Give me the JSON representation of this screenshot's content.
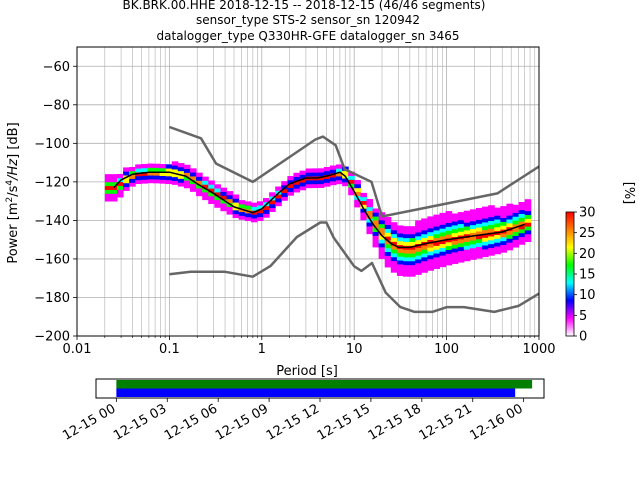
{
  "chart_data": [
    {
      "type": "heatmap",
      "title_lines": [
        "BK.BRK.00.HHE   2018-12-15 -- 2018-12-15  (46/46 segments)",
        "sensor_type STS-2 sensor_sn 120942",
        "datalogger_type Q330HR-GFE datalogger_sn 3465"
      ],
      "xlabel": "Period [s]",
      "ylabel": "Power [m²/s⁴/Hz] [dB]",
      "x_scale": "log",
      "xlim": [
        0.01,
        1000
      ],
      "ylim": [
        -200,
        -50
      ],
      "xticks": [
        0.01,
        0.1,
        1,
        10,
        100,
        1000
      ],
      "xtick_labels": [
        "0.01",
        "0.1",
        "1",
        "10",
        "100",
        "1000"
      ],
      "yticks": [
        -200,
        -180,
        -160,
        -140,
        -120,
        -100,
        -80,
        -60
      ],
      "ytick_labels": [
        "−200",
        "−180",
        "−160",
        "−140",
        "−120",
        "−100",
        "−80",
        "−60"
      ],
      "grid": true,
      "colorbar": {
        "label": "[%]",
        "range": [
          0,
          30
        ],
        "ticks": [
          0,
          5,
          10,
          15,
          20,
          25,
          30
        ],
        "colormap": [
          "#ffffff",
          "#ff00ff",
          "#0000ff",
          "#00ffff",
          "#00ff00",
          "#ffff00",
          "#ff8000",
          "#ff0000"
        ]
      },
      "noise_models": {
        "color": "#666666",
        "high_noise_model": {
          "period": [
            0.1,
            0.22,
            0.32,
            0.8,
            3.8,
            4.6,
            6.3,
            7.9,
            15.4,
            20,
            354.8,
            1000
          ],
          "db": [
            -91.5,
            -97.4,
            -110.5,
            -120.0,
            -98.0,
            -96.5,
            -101.0,
            -113.5,
            -120.0,
            -138.0,
            -126.0,
            -112.0
          ]
        },
        "low_noise_model": {
          "period": [
            0.1,
            0.17,
            0.4,
            0.8,
            1.24,
            2.4,
            4.3,
            5.0,
            6.0,
            10.0,
            12.0,
            15.6,
            21.9,
            31.6,
            45.0,
            70.0,
            101.0,
            154.0,
            328.0,
            600.0,
            1000.0
          ],
          "db": [
            -168.0,
            -166.7,
            -166.7,
            -169.2,
            -163.7,
            -148.6,
            -141.1,
            -141.1,
            -149.0,
            -163.8,
            -166.2,
            -162.1,
            -177.5,
            -185.0,
            -187.5,
            -187.5,
            -185.0,
            -185.0,
            -187.5,
            -184.4,
            -178.0
          ]
        }
      },
      "mean_psd": {
        "color": "#000000",
        "period": [
          0.025,
          0.03,
          0.04,
          0.06,
          0.1,
          0.15,
          0.2,
          0.3,
          0.5,
          0.8,
          1.0,
          1.5,
          2.0,
          3.0,
          4.0,
          5.0,
          6.0,
          7.0,
          8.0,
          10.0,
          13.0,
          16.0,
          20.0,
          25.0,
          30.0,
          40.0,
          60.0,
          100.0,
          200.0,
          400.0,
          700.0
        ],
        "db": [
          -123,
          -119,
          -116,
          -115,
          -115,
          -117,
          -121,
          -126,
          -133,
          -136,
          -134,
          -126,
          -121,
          -118,
          -118,
          -117,
          -116,
          -115,
          -117,
          -125,
          -135,
          -142,
          -148,
          -152,
          -154,
          -154,
          -152,
          -150,
          -148,
          -146,
          -142
        ]
      },
      "psd_spread_db": {
        "period": [
          0.025,
          0.04,
          0.1,
          0.3,
          0.8,
          2.0,
          6.0,
          12.0,
          20.0,
          40.0,
          100.0,
          300.0,
          700.0
        ],
        "low": [
          -6,
          -4,
          -5,
          -6,
          -4,
          -4,
          -4,
          -8,
          -14,
          -14,
          -12,
          -10,
          -8
        ],
        "high": [
          6,
          5,
          5,
          5,
          5,
          4,
          4,
          6,
          10,
          12,
          14,
          14,
          12
        ]
      }
    },
    {
      "type": "timeline",
      "xlim": [
        "2018-12-14 22:48",
        "2018-12-16 01:12"
      ],
      "tick_labels": [
        "12-15 00",
        "12-15 03",
        "12-15 06",
        "12-15 09",
        "12-15 12",
        "12-15 15",
        "12-15 18",
        "12-15 21",
        "12-16 00"
      ],
      "bars": [
        {
          "color": "#008000",
          "start": "2018-12-15 00:00",
          "end": "2018-12-16 00:30"
        },
        {
          "color": "#0000ff",
          "start": "2018-12-15 00:00",
          "end": "2018-12-15 23:30"
        }
      ]
    }
  ]
}
